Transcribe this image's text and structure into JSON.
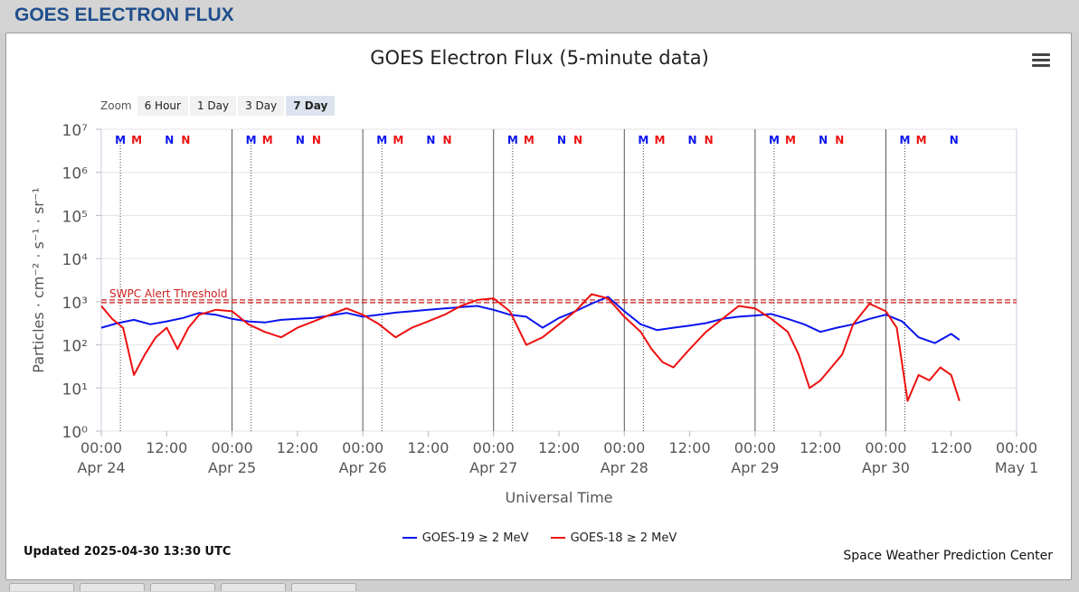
{
  "page": {
    "title": "GOES ELECTRON FLUX"
  },
  "chart": {
    "title": "GOES Electron Flux (5-minute data)",
    "zoom_label": "Zoom",
    "zoom_buttons": [
      "6 Hour",
      "1 Day",
      "3 Day",
      "7 Day"
    ],
    "zoom_active": "7 Day",
    "updated": "Updated 2025-04-30 13:30 UTC",
    "credit": "Space Weather Prediction Center",
    "threshold_label": "SWPC Alert Threshold"
  },
  "colors": {
    "goes19": "#0a14ee",
    "goes18": "#ee1010",
    "threshold": "#cc2020",
    "title_blue": "#1f4e8c"
  },
  "chart_data": {
    "type": "line",
    "xlabel": "Universal Time",
    "ylabel": "Particles · cm⁻² · s⁻¹ · sr⁻¹",
    "y_scale": "log",
    "ylim": [
      1,
      10000000
    ],
    "xlim": [
      "2025-04-24T00:00",
      "2025-05-01T00:00"
    ],
    "y_ticks": [
      "10⁰",
      "10¹",
      "10²",
      "10³",
      "10⁴",
      "10⁵",
      "10⁶",
      "10⁷"
    ],
    "x_ticks": [
      {
        "time": "00:00",
        "date": "Apr 24"
      },
      {
        "time": "12:00",
        "date": ""
      },
      {
        "time": "00:00",
        "date": "Apr 25"
      },
      {
        "time": "12:00",
        "date": ""
      },
      {
        "time": "00:00",
        "date": "Apr 26"
      },
      {
        "time": "12:00",
        "date": ""
      },
      {
        "time": "00:00",
        "date": "Apr 27"
      },
      {
        "time": "12:00",
        "date": ""
      },
      {
        "time": "00:00",
        "date": "Apr 28"
      },
      {
        "time": "12:00",
        "date": ""
      },
      {
        "time": "00:00",
        "date": "Apr 29"
      },
      {
        "time": "12:00",
        "date": ""
      },
      {
        "time": "00:00",
        "date": "Apr 30"
      },
      {
        "time": "12:00",
        "date": ""
      },
      {
        "time": "00:00",
        "date": "May 1"
      }
    ],
    "threshold": 1000,
    "mn_markers": [
      {
        "label": "M",
        "series": "GOES-19",
        "x": [
          "Apr 24 03:30",
          "Apr 25 03:30",
          "Apr 26 03:30",
          "Apr 27 03:30",
          "Apr 28 03:30",
          "Apr 29 03:30",
          "Apr 30 03:30"
        ]
      },
      {
        "label": "M",
        "series": "GOES-18",
        "x": [
          "Apr 24 06:30",
          "Apr 25 06:30",
          "Apr 26 06:30",
          "Apr 27 06:30",
          "Apr 28 06:30",
          "Apr 29 06:30",
          "Apr 30 06:30"
        ]
      },
      {
        "label": "N",
        "series": "GOES-19",
        "x": [
          "Apr 24 12:30",
          "Apr 25 12:30",
          "Apr 26 12:30",
          "Apr 27 12:30",
          "Apr 28 12:30",
          "Apr 29 12:30",
          "Apr 30 12:30"
        ]
      },
      {
        "label": "N",
        "series": "GOES-18",
        "x": [
          "Apr 24 15:30",
          "Apr 25 15:30",
          "Apr 26 15:30",
          "Apr 27 15:30",
          "Apr 28 15:30",
          "Apr 29 15:30"
        ]
      }
    ],
    "series": [
      {
        "name": "GOES-19 ≥ 2 MeV",
        "x": [
          "Apr 24 00:00",
          "Apr 24 03:00",
          "Apr 24 06:00",
          "Apr 24 09:00",
          "Apr 24 12:00",
          "Apr 24 15:00",
          "Apr 24 18:00",
          "Apr 24 21:00",
          "Apr 25 00:00",
          "Apr 25 03:00",
          "Apr 25 06:00",
          "Apr 25 09:00",
          "Apr 25 12:00",
          "Apr 25 15:00",
          "Apr 25 18:00",
          "Apr 25 21:00",
          "Apr 26 00:00",
          "Apr 26 03:00",
          "Apr 26 06:00",
          "Apr 26 09:00",
          "Apr 26 12:00",
          "Apr 26 15:00",
          "Apr 26 18:00",
          "Apr 26 21:00",
          "Apr 27 00:00",
          "Apr 27 03:00",
          "Apr 27 06:00",
          "Apr 27 09:00",
          "Apr 27 12:00",
          "Apr 27 15:00",
          "Apr 27 18:00",
          "Apr 27 21:00",
          "Apr 28 00:00",
          "Apr 28 03:00",
          "Apr 28 06:00",
          "Apr 28 09:00",
          "Apr 28 12:00",
          "Apr 28 15:00",
          "Apr 28 18:00",
          "Apr 28 21:00",
          "Apr 29 00:00",
          "Apr 29 03:00",
          "Apr 29 06:00",
          "Apr 29 09:00",
          "Apr 29 12:00",
          "Apr 29 15:00",
          "Apr 29 18:00",
          "Apr 29 21:00",
          "Apr 30 00:00",
          "Apr 30 03:00",
          "Apr 30 06:00",
          "Apr 30 09:00",
          "Apr 30 12:00",
          "Apr 30 13:30"
        ],
        "values": [
          250,
          320,
          380,
          300,
          350,
          420,
          550,
          500,
          400,
          350,
          330,
          380,
          400,
          420,
          480,
          550,
          450,
          500,
          560,
          600,
          650,
          700,
          750,
          800,
          650,
          500,
          450,
          250,
          420,
          600,
          900,
          1300,
          600,
          300,
          220,
          250,
          280,
          320,
          400,
          450,
          480,
          520,
          400,
          300,
          200,
          250,
          300,
          400,
          500,
          350,
          150,
          110,
          180,
          130
        ]
      },
      {
        "name": "GOES-18 ≥ 2 MeV",
        "x": [
          "Apr 24 00:00",
          "Apr 24 02:00",
          "Apr 24 04:00",
          "Apr 24 06:00",
          "Apr 24 08:00",
          "Apr 24 10:00",
          "Apr 24 12:00",
          "Apr 24 14:00",
          "Apr 24 16:00",
          "Apr 24 18:00",
          "Apr 24 21:00",
          "Apr 25 00:00",
          "Apr 25 03:00",
          "Apr 25 06:00",
          "Apr 25 09:00",
          "Apr 25 12:00",
          "Apr 25 15:00",
          "Apr 25 18:00",
          "Apr 25 21:00",
          "Apr 26 00:00",
          "Apr 26 03:00",
          "Apr 26 06:00",
          "Apr 26 09:00",
          "Apr 26 12:00",
          "Apr 26 15:00",
          "Apr 26 18:00",
          "Apr 26 21:00",
          "Apr 27 00:00",
          "Apr 27 03:00",
          "Apr 27 06:00",
          "Apr 27 09:00",
          "Apr 27 12:00",
          "Apr 27 15:00",
          "Apr 27 18:00",
          "Apr 27 21:00",
          "Apr 28 00:00",
          "Apr 28 03:00",
          "Apr 28 05:00",
          "Apr 28 07:00",
          "Apr 28 09:00",
          "Apr 28 12:00",
          "Apr 28 15:00",
          "Apr 28 18:00",
          "Apr 28 21:00",
          "Apr 29 00:00",
          "Apr 29 03:00",
          "Apr 29 06:00",
          "Apr 29 08:00",
          "Apr 29 10:00",
          "Apr 29 12:00",
          "Apr 29 14:00",
          "Apr 29 16:00",
          "Apr 29 18:00",
          "Apr 29 21:00",
          "Apr 30 00:00",
          "Apr 30 02:00",
          "Apr 30 04:00",
          "Apr 30 06:00",
          "Apr 30 08:00",
          "Apr 30 10:00",
          "Apr 30 12:00",
          "Apr 30 13:30"
        ],
        "values": [
          800,
          400,
          250,
          20,
          60,
          150,
          250,
          80,
          250,
          500,
          650,
          600,
          300,
          200,
          150,
          250,
          350,
          500,
          700,
          500,
          300,
          150,
          250,
          350,
          500,
          800,
          1100,
          1200,
          600,
          100,
          150,
          300,
          600,
          1500,
          1200,
          450,
          200,
          80,
          40,
          30,
          80,
          200,
          400,
          800,
          700,
          400,
          200,
          60,
          10,
          15,
          30,
          60,
          300,
          900,
          600,
          250,
          5,
          20,
          15,
          30,
          20,
          5
        ]
      }
    ]
  }
}
